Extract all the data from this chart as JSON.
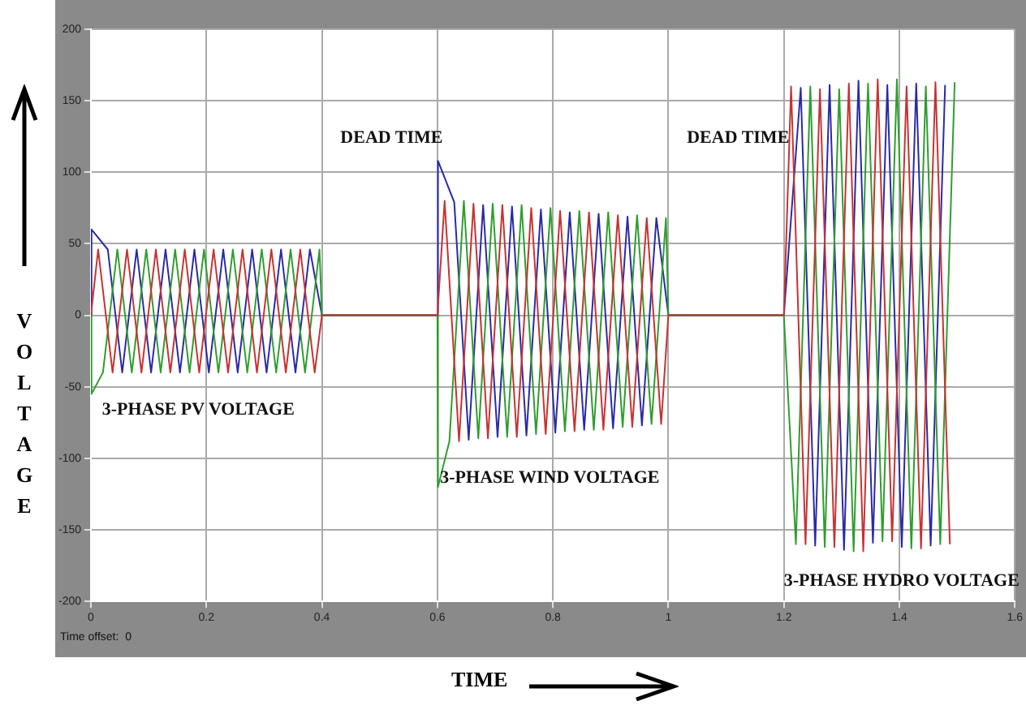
{
  "chart_data": {
    "type": "line",
    "xlabel": "TIME",
    "ylabel": "VOLTAGE",
    "xlim": [
      0,
      1.6
    ],
    "xticks": [
      0,
      0.2,
      0.4,
      0.6,
      0.8,
      1,
      1.2,
      1.4,
      1.6
    ],
    "ylim": [
      -200,
      200
    ],
    "yticks": [
      -200,
      -150,
      -100,
      -50,
      0,
      50,
      100,
      150,
      200
    ],
    "grid": true,
    "legend": false,
    "marker": "none",
    "line_style": "solid",
    "annotations": [
      "DEAD TIME",
      "DEAD TIME",
      "3-PHASE PV VOLTAGE",
      "3-PHASE WIND VOLTAGE",
      "3-PHASE HYDRO VOLTAGE",
      "Time offset:  0"
    ],
    "series": [
      {
        "color": "#c83232",
        "x": [
          0,
          0.0125,
          0.0375,
          0.0625,
          0.0875,
          0.1125,
          0.1375,
          0.1625,
          0.1875,
          0.2125,
          0.2375,
          0.2625,
          0.2875,
          0.3125,
          0.3375,
          0.3625,
          0.3875,
          0.4,
          0.6,
          0.6125,
          0.6375,
          0.6625,
          0.6875,
          0.7125,
          0.7375,
          0.7625,
          0.7875,
          0.8125,
          0.8375,
          0.8625,
          0.8875,
          0.9125,
          0.9375,
          0.9625,
          0.9875,
          1,
          1.2,
          1.2125,
          1.2375,
          1.2625,
          1.2875,
          1.3125,
          1.3375,
          1.3625,
          1.3875,
          1.4125,
          1.4375,
          1.4625,
          1.4875
        ],
        "values": [
          0,
          46,
          -40,
          46,
          -40,
          46,
          -40,
          46,
          -40,
          46,
          -40,
          46,
          -40,
          46,
          -40,
          46,
          -40,
          0,
          0,
          80,
          -88,
          78,
          -86,
          77,
          -85,
          75,
          -83,
          73,
          -81,
          72,
          -80,
          70,
          -78,
          68,
          -76,
          0,
          0,
          160,
          -160,
          158,
          -162,
          162,
          -165,
          165,
          -158,
          160,
          -163,
          163,
          -160
        ]
      },
      {
        "color": "#2e9e2e",
        "x": [
          0,
          0.001,
          0.0208,
          0.0458,
          0.0708,
          0.0958,
          0.1208,
          0.1458,
          0.1708,
          0.1958,
          0.2208,
          0.2458,
          0.2708,
          0.2958,
          0.3208,
          0.3458,
          0.3708,
          0.3958,
          0.4,
          0.6,
          0.601,
          0.6208,
          0.6458,
          0.6708,
          0.6958,
          0.7208,
          0.7458,
          0.7708,
          0.7958,
          0.8208,
          0.8458,
          0.8708,
          0.8958,
          0.9208,
          0.9458,
          0.9708,
          0.9958,
          1,
          1.2,
          1.2208,
          1.2458,
          1.2708,
          1.2958,
          1.3208,
          1.3458,
          1.3708,
          1.3958,
          1.4208,
          1.4458,
          1.4708,
          1.4958
        ],
        "values": [
          0,
          -55,
          -40,
          46,
          -40,
          46,
          -40,
          46,
          -40,
          46,
          -40,
          46,
          -40,
          46,
          -40,
          46,
          -40,
          46,
          0,
          0,
          -120,
          -88,
          80,
          -86,
          78,
          -85,
          77,
          -83,
          75,
          -81,
          73,
          -80,
          72,
          -78,
          70,
          -76,
          68,
          0,
          0,
          -160,
          160,
          -162,
          158,
          -165,
          162,
          -158,
          165,
          -163,
          160,
          -160,
          163
        ]
      },
      {
        "color": "#2a2aa8",
        "x": [
          0,
          0.001,
          0.0292,
          0.0542,
          0.0792,
          0.1042,
          0.1292,
          0.1542,
          0.1792,
          0.2042,
          0.2292,
          0.2542,
          0.2792,
          0.3042,
          0.3292,
          0.3542,
          0.3792,
          0.4,
          0.6,
          0.601,
          0.6292,
          0.6542,
          0.6792,
          0.7042,
          0.7292,
          0.7542,
          0.7792,
          0.8042,
          0.8292,
          0.8542,
          0.8792,
          0.9042,
          0.9292,
          0.9542,
          0.9792,
          1,
          1.2,
          1.2292,
          1.2542,
          1.2792,
          1.3042,
          1.3292,
          1.3542,
          1.3792,
          1.4042,
          1.4292,
          1.4542,
          1.4792
        ],
        "values": [
          0,
          60,
          46,
          -40,
          46,
          -40,
          46,
          -40,
          46,
          -40,
          46,
          -40,
          46,
          -40,
          46,
          -40,
          46,
          0,
          0,
          108,
          79,
          -87,
          77,
          -85,
          76,
          -84,
          74,
          -82,
          72,
          -80,
          71,
          -79,
          69,
          -77,
          68,
          0,
          0,
          159,
          -161,
          161,
          -164,
          164,
          -159,
          161,
          -162,
          162,
          -161,
          161
        ]
      }
    ]
  }
}
